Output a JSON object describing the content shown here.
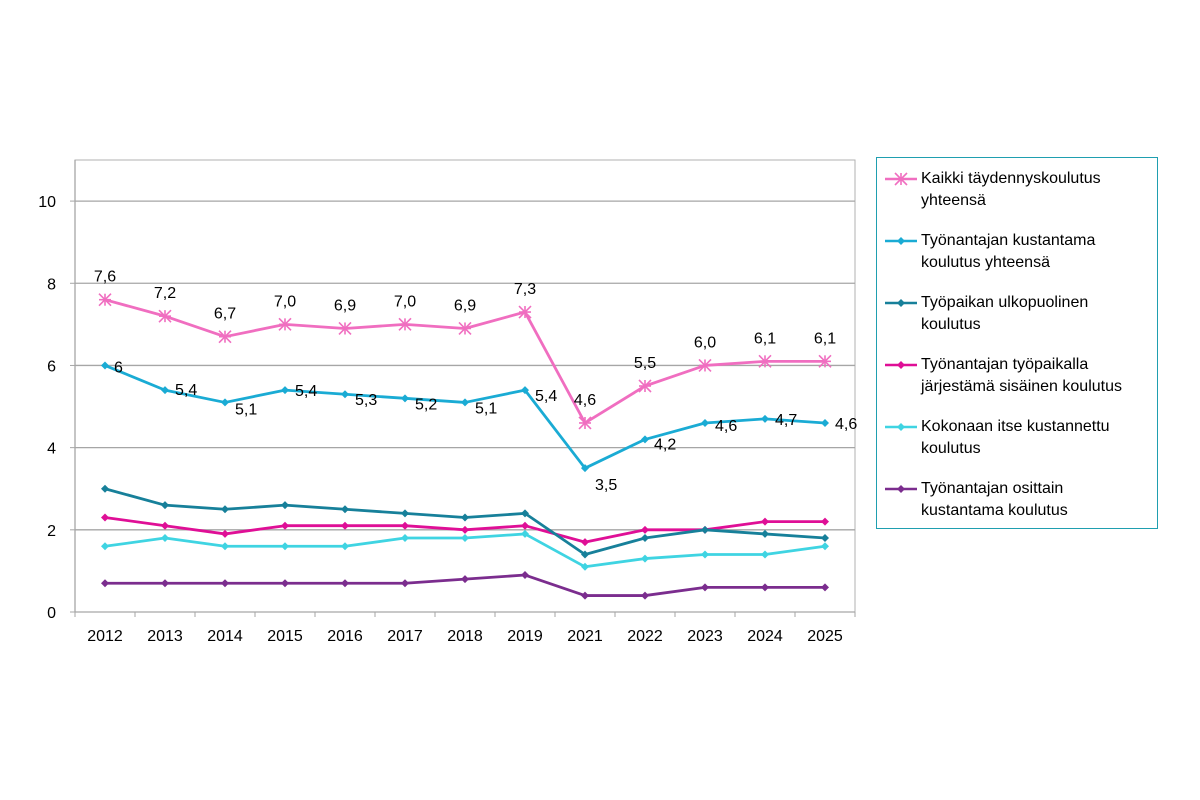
{
  "chart_data": {
    "type": "line",
    "title": "",
    "xlabel": "",
    "ylabel": "",
    "ylim": [
      0,
      11
    ],
    "yticks": [
      0,
      2,
      4,
      6,
      8,
      10
    ],
    "ytick_labels": [
      "0",
      "2",
      "4",
      "6",
      "8",
      "10"
    ],
    "grid": true,
    "legend_position": "right",
    "categories": [
      "2012",
      "2013",
      "2014",
      "2015",
      "2016",
      "2017",
      "2018",
      "2019",
      "2021",
      "2022",
      "2023",
      "2024",
      "2025"
    ],
    "series": [
      {
        "name": "Kaikki täydennyskoulutus yhteensä",
        "legend_lines": [
          "Kaikki täydennyskoulutus",
          "yhteensä"
        ],
        "color": "#f06ec0",
        "marker": "asterisk",
        "values": [
          7.6,
          7.2,
          6.7,
          7.0,
          6.9,
          7.0,
          6.9,
          7.3,
          4.6,
          5.5,
          6.0,
          6.1,
          6.1
        ],
        "labels": [
          "7,6",
          "7,2",
          "6,7",
          "7,0",
          "6,9",
          "7,0",
          "6,9",
          "7,3",
          "4,6",
          "5,5",
          "6,0",
          "6,1",
          "6,1"
        ]
      },
      {
        "name": "Työnantajan kustantama koulutus yhteensä",
        "legend_lines": [
          "Työnantajan kustantama",
          "koulutus yhteensä"
        ],
        "color": "#1aabd4",
        "marker": "diamond",
        "values": [
          6.0,
          5.4,
          5.1,
          5.4,
          5.3,
          5.2,
          5.1,
          5.4,
          3.5,
          4.2,
          4.6,
          4.7,
          4.6
        ],
        "labels": [
          "6",
          "5,4",
          "5,1",
          "5,4",
          "5,3",
          "5,2",
          "5,1",
          "5,4",
          "3,5",
          "4,2",
          "4,6",
          "4,7",
          "4,6"
        ]
      },
      {
        "name": "Työpaikan ulkopuolinen koulutus",
        "legend_lines": [
          "Työpaikan ulkopuolinen",
          "koulutus"
        ],
        "color": "#17809a",
        "marker": "diamond",
        "values": [
          3.0,
          2.6,
          2.5,
          2.6,
          2.5,
          2.4,
          2.3,
          2.4,
          1.4,
          1.8,
          2.0,
          1.9,
          1.8
        ]
      },
      {
        "name": "Työnantajan työpaikalla järjestämä sisäinen koulutus",
        "legend_lines": [
          "Työnantajan työpaikalla",
          "järjestämä sisäinen koulutus"
        ],
        "color": "#df0f96",
        "marker": "diamond",
        "values": [
          2.3,
          2.1,
          1.9,
          2.1,
          2.1,
          2.1,
          2.0,
          2.1,
          1.7,
          2.0,
          2.0,
          2.2,
          2.2
        ]
      },
      {
        "name": "Kokonaan itse kustannettu koulutus",
        "legend_lines": [
          "Kokonaan itse kustannettu",
          "koulutus"
        ],
        "color": "#3fd4e2",
        "marker": "diamond",
        "values": [
          1.6,
          1.8,
          1.6,
          1.6,
          1.6,
          1.8,
          1.8,
          1.9,
          1.1,
          1.3,
          1.4,
          1.4,
          1.6
        ]
      },
      {
        "name": "Työnantajan osittain kustantama koulutus",
        "legend_lines": [
          "Työnantajan osittain",
          "kustantama koulutus"
        ],
        "color": "#7b2d8e",
        "marker": "diamond",
        "values": [
          0.7,
          0.7,
          0.7,
          0.7,
          0.7,
          0.7,
          0.8,
          0.9,
          0.4,
          0.4,
          0.6,
          0.6,
          0.6
        ]
      }
    ]
  }
}
